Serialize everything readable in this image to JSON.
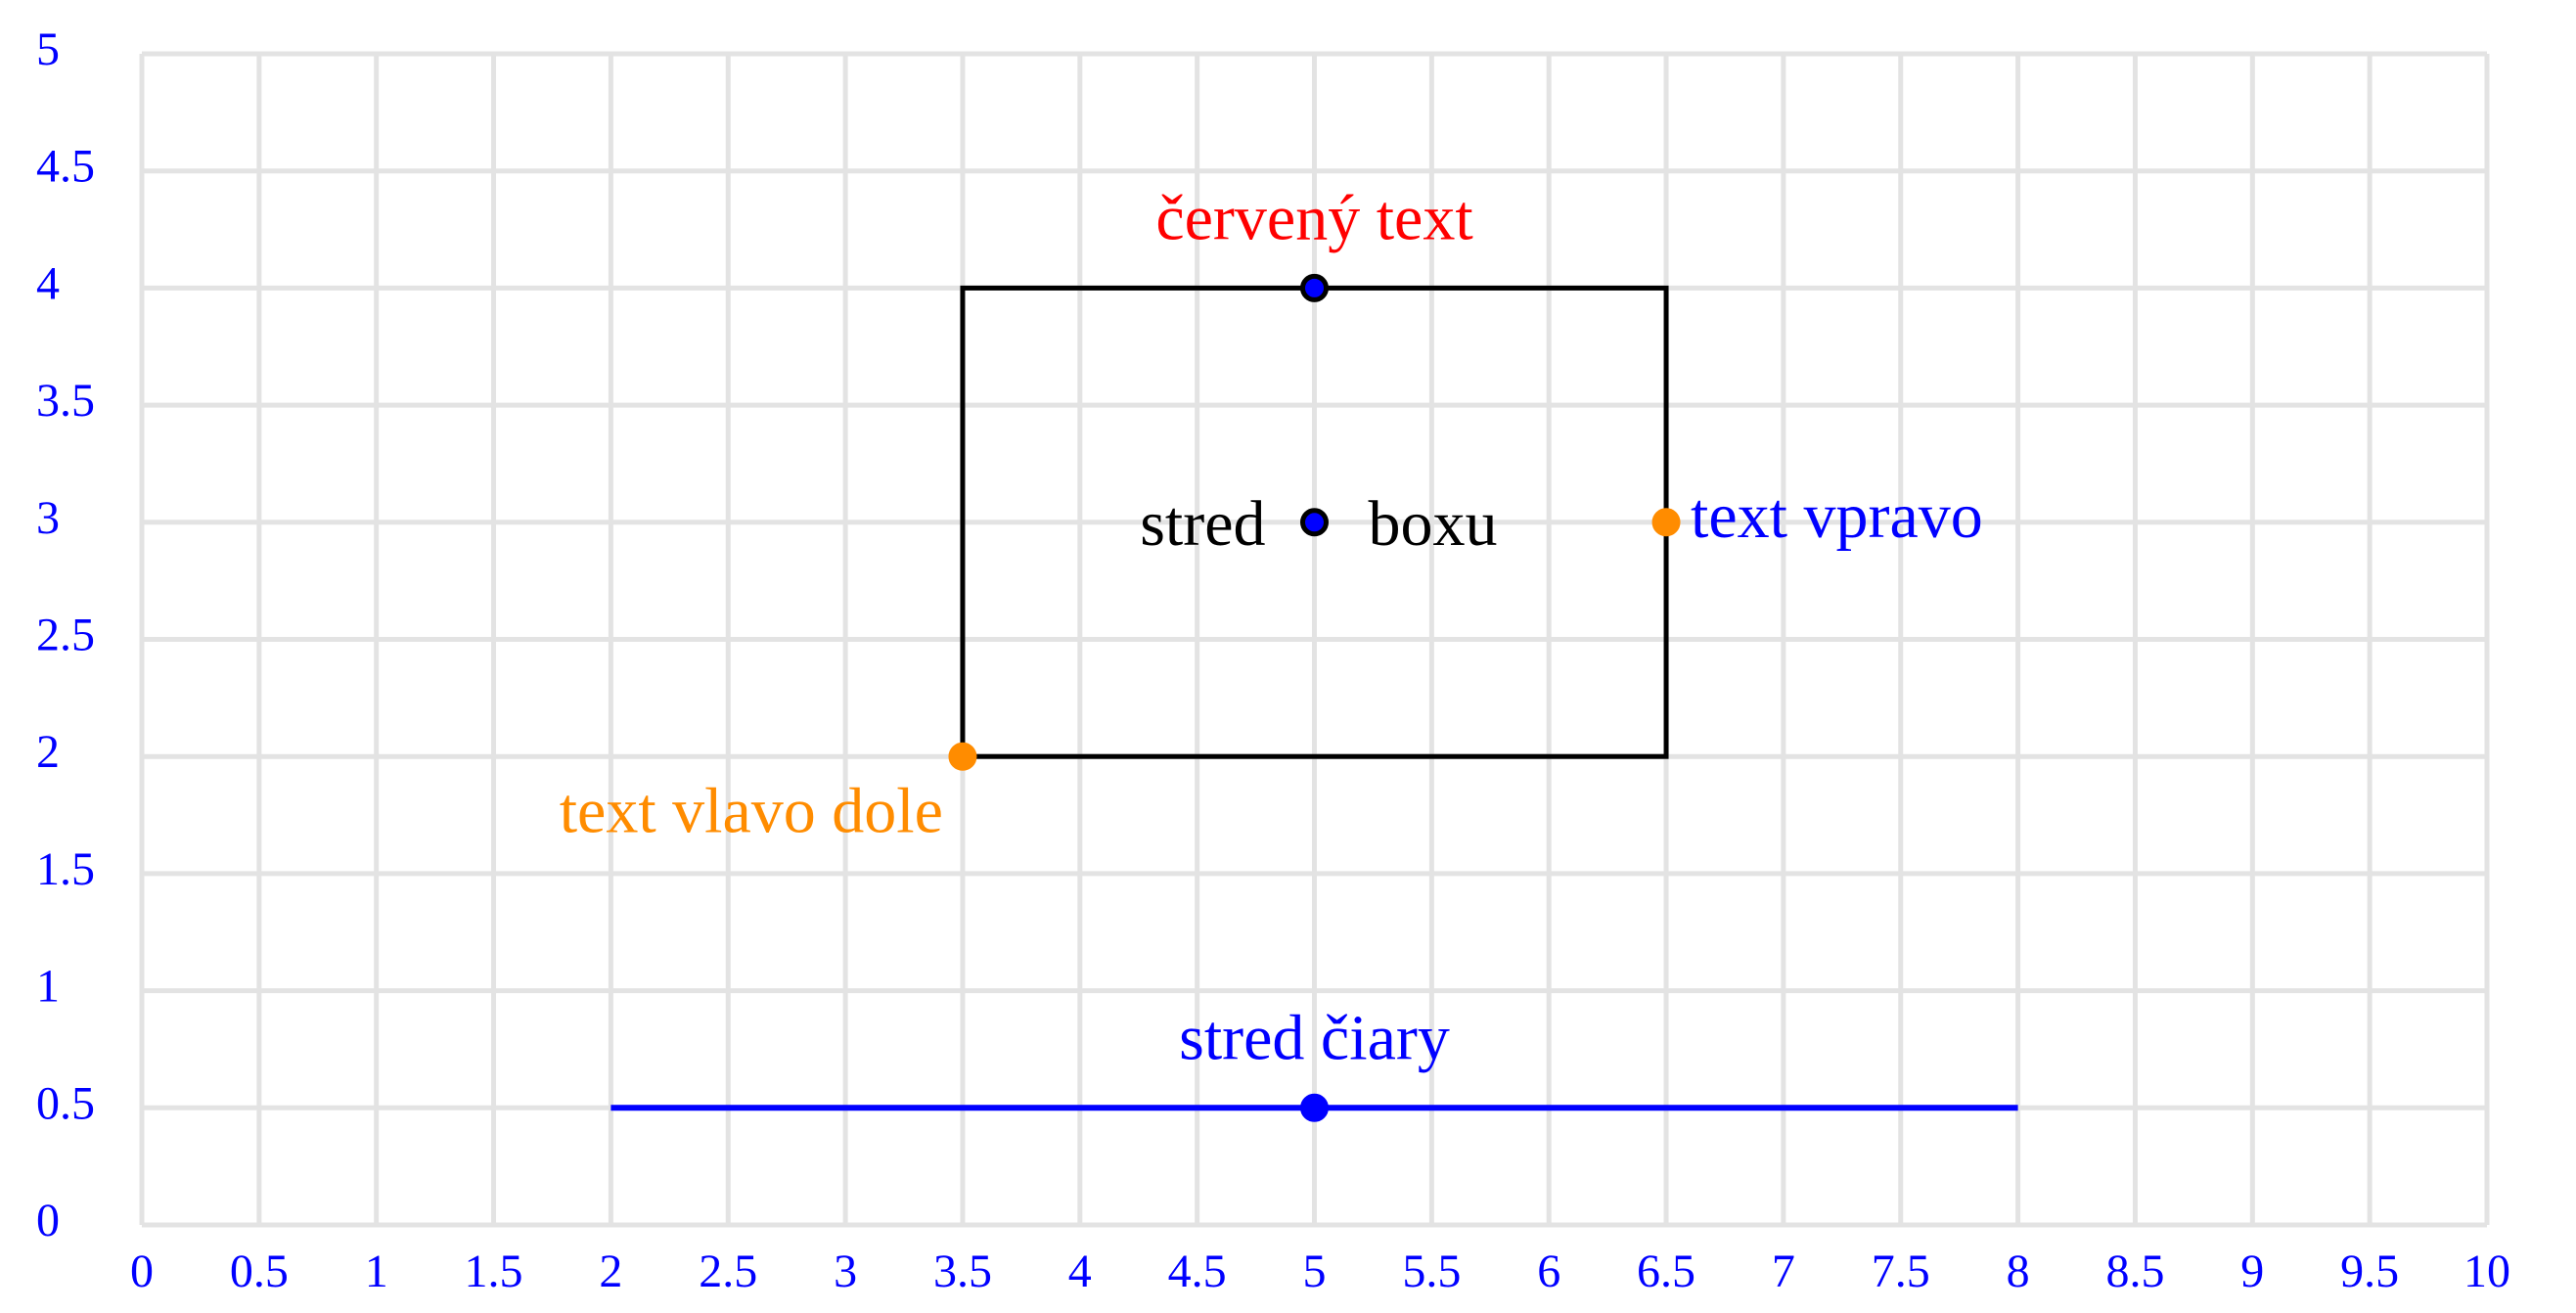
{
  "axes": {
    "xlim": [
      0,
      10
    ],
    "ylim": [
      0,
      5
    ],
    "xticks": [
      0,
      0.5,
      1,
      1.5,
      2,
      2.5,
      3,
      3.5,
      4,
      4.5,
      5,
      5.5,
      6,
      6.5,
      7,
      7.5,
      8,
      8.5,
      9,
      9.5,
      10
    ],
    "yticks": [
      0,
      0.5,
      1,
      1.5,
      2,
      2.5,
      3,
      3.5,
      4,
      4.5,
      5
    ],
    "tick_color": "#0000ff",
    "grid_color": "#e3e3e3"
  },
  "box": {
    "x": [
      3.5,
      6.5
    ],
    "y": [
      2,
      4
    ],
    "color": "#000000"
  },
  "line": {
    "x": [
      2,
      8
    ],
    "y": 0.5,
    "color": "#0000ff"
  },
  "points": [
    {
      "x": 5,
      "y": 4,
      "fill": "#0000ff",
      "stroke": "#000000",
      "labels": [
        {
          "text": "červený text",
          "position": "above",
          "color": "#ff0000"
        }
      ]
    },
    {
      "x": 5,
      "y": 3,
      "fill": "#0000ff",
      "stroke": "#000000",
      "labels": [
        {
          "text": "stred",
          "position": "left",
          "color": "#000000"
        },
        {
          "text": "boxu",
          "position": "right",
          "color": "#000000"
        }
      ]
    },
    {
      "x": 6.5,
      "y": 3,
      "fill": "#ff8c00",
      "stroke": "#ff8c00",
      "labels": [
        {
          "text": "text vpravo",
          "position": "right",
          "color": "#0000ff"
        }
      ]
    },
    {
      "x": 3.5,
      "y": 2,
      "fill": "#ff8c00",
      "stroke": "#ff8c00",
      "labels": [
        {
          "text": "text vlavo dole",
          "position": "below left",
          "color": "#ff8c00"
        }
      ]
    },
    {
      "x": 5,
      "y": 0.5,
      "fill": "#0000ff",
      "stroke": "#0000ff",
      "labels": [
        {
          "text": "stred čiary",
          "position": "above",
          "color": "#0000ff"
        }
      ]
    }
  ]
}
